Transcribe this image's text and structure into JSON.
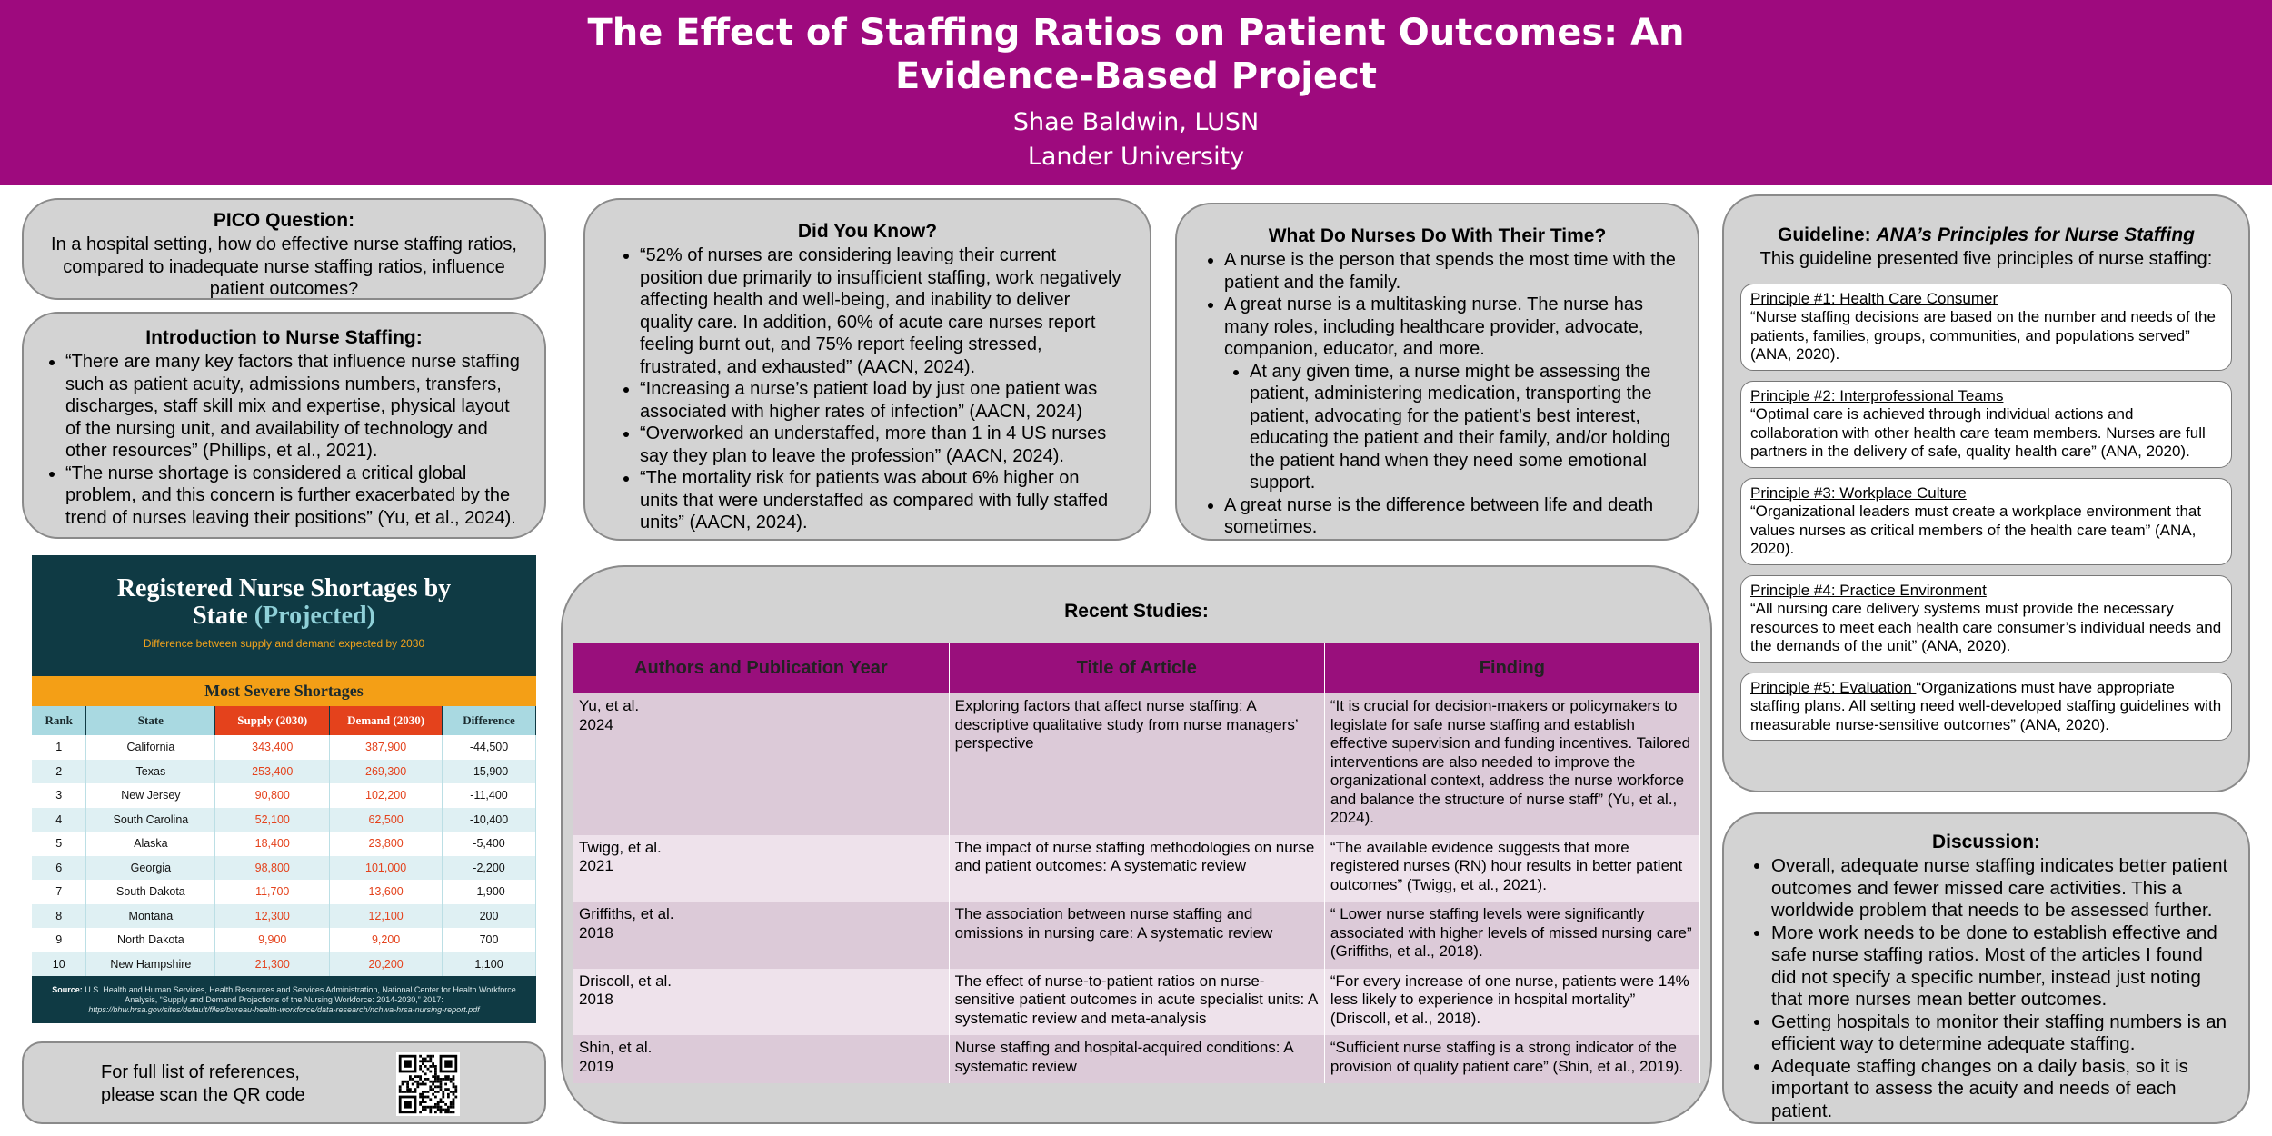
{
  "header": {
    "title": "The Effect of Staffing Ratios on Patient Outcomes: An Evidence-Based Project",
    "author": "Shae Baldwin, LUSN",
    "institution": "Lander University"
  },
  "pico": {
    "heading": "PICO Question:",
    "text": "In a hospital setting, how do effective nurse staffing ratios, compared to inadequate nurse staffing ratios, influence patient outcomes?"
  },
  "intro": {
    "heading": "Introduction to Nurse Staffing:",
    "items": [
      "“There are many key factors that influence nurse staffing such as patient acuity, admissions numbers, transfers, discharges, staff skill mix and expertise, physical layout of the nursing unit, and availability of technology and other resources” (Phillips, et al., 2021).",
      "“The nurse shortage is considered a critical global problem, and this concern is further exacerbated by the trend of nurses leaving their positions” (Yu, et al., 2024)."
    ]
  },
  "shortage_figure": {
    "title": "Registered Nurse Shortages by State",
    "title_highlight": "(Projected)",
    "subtitle": "Difference between supply and demand expected by 2030",
    "section": "Most Severe Shortages",
    "columns": [
      "Rank",
      "State",
      "Supply (2030)",
      "Demand (2030)",
      "Difference"
    ],
    "rows": [
      [
        "1",
        "California",
        "343,400",
        "387,900",
        "-44,500"
      ],
      [
        "2",
        "Texas",
        "253,400",
        "269,300",
        "-15,900"
      ],
      [
        "3",
        "New Jersey",
        "90,800",
        "102,200",
        "-11,400"
      ],
      [
        "4",
        "South Carolina",
        "52,100",
        "62,500",
        "-10,400"
      ],
      [
        "5",
        "Alaska",
        "18,400",
        "23,800",
        "-5,400"
      ],
      [
        "6",
        "Georgia",
        "98,800",
        "101,000",
        "-2,200"
      ],
      [
        "7",
        "South Dakota",
        "11,700",
        "13,600",
        "-1,900"
      ],
      [
        "8",
        "Montana",
        "12,300",
        "12,100",
        "200"
      ],
      [
        "9",
        "North Dakota",
        "9,900",
        "9,200",
        "700"
      ],
      [
        "10",
        "New Hampshire",
        "21,300",
        "20,200",
        "1,100"
      ]
    ],
    "source_label": "Source:",
    "source": "U.S. Health and Human Services, Health Resources and Services Administration, National Center for Health Workforce Analysis, “Supply and Demand Projections of the Nursing Workforce: 2014-2030,” 2017:",
    "source_url": "https://bhw.hrsa.gov/sites/default/files/bureau-health-workforce/data-research/nchwa-hrsa-nursing-report.pdf"
  },
  "references": {
    "lines": [
      "For full list of references,",
      "please scan the QR code"
    ]
  },
  "did_you_know": {
    "heading": "Did You Know?",
    "items": [
      "“52% of nurses are considering leaving their current position due primarily to insufficient staffing, work negatively affecting health and well-being, and inability to deliver quality care. In addition, 60% of acute care nurses report feeling burnt out, and 75% report feeling stressed, frustrated, and exhausted” (AACN, 2024).",
      "“Increasing a nurse’s patient load by just one patient was associated with higher rates of infection” (AACN, 2024)",
      "“Overworked an understaffed, more than 1 in 4 US nurses say they plan to leave the profession” (AACN, 2024).",
      "“The mortality risk for patients was about 6% higher on units that were understaffed as compared with fully staffed units” (AACN, 2024)."
    ]
  },
  "nurses_time": {
    "heading": "What Do Nurses Do With Their Time?",
    "items": [
      {
        "text": "A nurse is the person that spends the most time with the patient and the family."
      },
      {
        "text": "A great nurse is a multitasking nurse. The nurse has many roles, including healthcare provider, advocate, companion, educator, and more.",
        "items": [
          "At any given time, a nurse might be assessing the patient, administering medication, transporting the patient, advocating for the patient’s best interest, educating the patient and their family, and/or holding the patient hand when they need some emotional support."
        ]
      },
      {
        "text": "A great nurse is the difference between life and death sometimes."
      }
    ]
  },
  "studies": {
    "heading": "Recent Studies:",
    "columns": [
      "Authors and Publication Year",
      "Title of Article",
      "Finding"
    ],
    "rows": [
      {
        "authors": "Yu, et al.",
        "year": "2024",
        "title": "Exploring factors that affect nurse staffing: A descriptive qualitative study from nurse managers’ perspective",
        "finding": "“It is crucial for decision-makers or policymakers to legislate for safe nurse staffing and establish effective supervision and funding incentives. Tailored interventions are also needed to improve the organizational context, address the nurse workforce and balance the structure of nurse staff” (Yu, et al., 2024)."
      },
      {
        "authors": "Twigg, et al.",
        "year": "2021",
        "title": "The impact of nurse staffing methodologies on nurse and patient outcomes: A systematic review",
        "finding": "“The available evidence suggests that more registered nurses (RN) hour results in better patient outcomes” (Twigg, et al., 2021)."
      },
      {
        "authors": "Griffiths, et al.",
        "year": "2018",
        "title": "The association between nurse staffing and omissions in nursing care: A systematic review",
        "finding": "“ Lower nurse staffing levels were significantly associated with higher levels of missed nursing care” (Griffiths, et al., 2018)."
      },
      {
        "authors": "Driscoll, et al.",
        "year": "2018",
        "title": "The effect of nurse-to-patient ratios on nurse-sensitive patient outcomes in acute specialist units: A systematic review and meta-analysis",
        "finding": "“For every increase of one nurse, patients were 14% less likely to experience in hospital mortality” (Driscoll, et al., 2018)."
      },
      {
        "authors": "Shin, et al.",
        "year": "2019",
        "title": "Nurse staffing and hospital-acquired conditions: A systematic review",
        "finding": "“Sufficient nurse staffing is a strong indicator of the provision of quality patient care” (Shin, et al., 2019)."
      }
    ]
  },
  "guideline": {
    "heading": "Guideline:",
    "heading_emphasis": "ANA’s Principles for Nurse Staffing",
    "subtitle": "This guideline presented five principles of nurse staffing:",
    "principles": [
      {
        "heading": "Principle #1: Health Care Consumer",
        "text": "“Nurse staffing decisions are based on the number and needs of the patients, families, groups, communities, and populations served” (ANA, 2020)."
      },
      {
        "heading": "Principle #2: Interprofessional Teams",
        "text": "“Optimal care is achieved through individual actions and collaboration with other health care team members. Nurses are full partners in the delivery of safe, quality health care” (ANA, 2020)."
      },
      {
        "heading": "Principle #3: Workplace Culture",
        "text": "“Organizational leaders must create a workplace environment that values nurses as critical members of the health care team” (ANA, 2020)."
      },
      {
        "heading": "Principle #4: Practice Environment",
        "text": "“All nursing care delivery systems must provide the necessary resources to meet each health care consumer’s individual needs and the demands of the unit” (ANA, 2020)."
      },
      {
        "heading": "Principle #5: Evaluation ",
        "text": "“Organizations must have appropriate staffing plans. All setting need well-developed staffing guidelines with measurable nurse-sensitive outcomes” (ANA, 2020)."
      }
    ]
  },
  "discussion": {
    "heading": "Discussion:",
    "items": [
      "Overall, adequate nurse staffing indicates better patient outcomes and fewer missed care activities. This a worldwide problem that needs to be assessed further.",
      "More work needs to be done to establish effective and safe nurse staffing ratios. Most of the articles I found did not specify a specific number, instead just noting that more nurses mean better outcomes.",
      "Getting hospitals to monitor their staffing numbers is an efficient way to determine adequate staffing.",
      "Adequate staffing changes on a daily basis, so it is important to assess the acuity and needs of each patient."
    ]
  }
}
